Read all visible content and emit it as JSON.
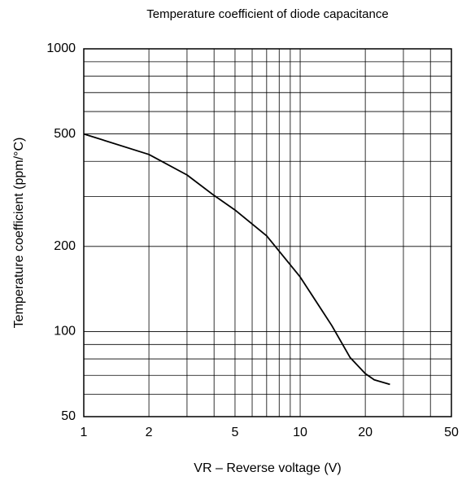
{
  "chart_data": {
    "type": "line",
    "title": "Temperature coefficient of diode capacitance",
    "x_label": "VR – Reverse voltage (V)",
    "y_label": "Temperature coefficient (ppm/°C)",
    "x": [
      1,
      2,
      3,
      4,
      5,
      7,
      10,
      14,
      17,
      20,
      22,
      26
    ],
    "series": [
      {
        "color": "#000000",
        "values": [
          500,
          423,
          358,
          303,
          269,
          218,
          156,
          105,
          81,
          71,
          67.5,
          65
        ]
      }
    ],
    "xlim": [
      1,
      50
    ],
    "ylim": [
      50,
      1000
    ],
    "xticks": [
      1,
      2,
      5,
      10,
      20,
      50
    ],
    "yticks": [
      50,
      100,
      200,
      500,
      1000
    ],
    "xgrid": [
      1,
      2,
      3,
      4,
      5,
      6,
      7,
      8,
      9,
      10,
      20,
      30,
      40,
      50
    ],
    "ygrid": [
      50,
      60,
      70,
      80,
      90,
      100,
      200,
      300,
      400,
      500,
      600,
      700,
      800,
      900,
      1000
    ],
    "xscale": "log",
    "yscale": "log",
    "grid": true
  }
}
